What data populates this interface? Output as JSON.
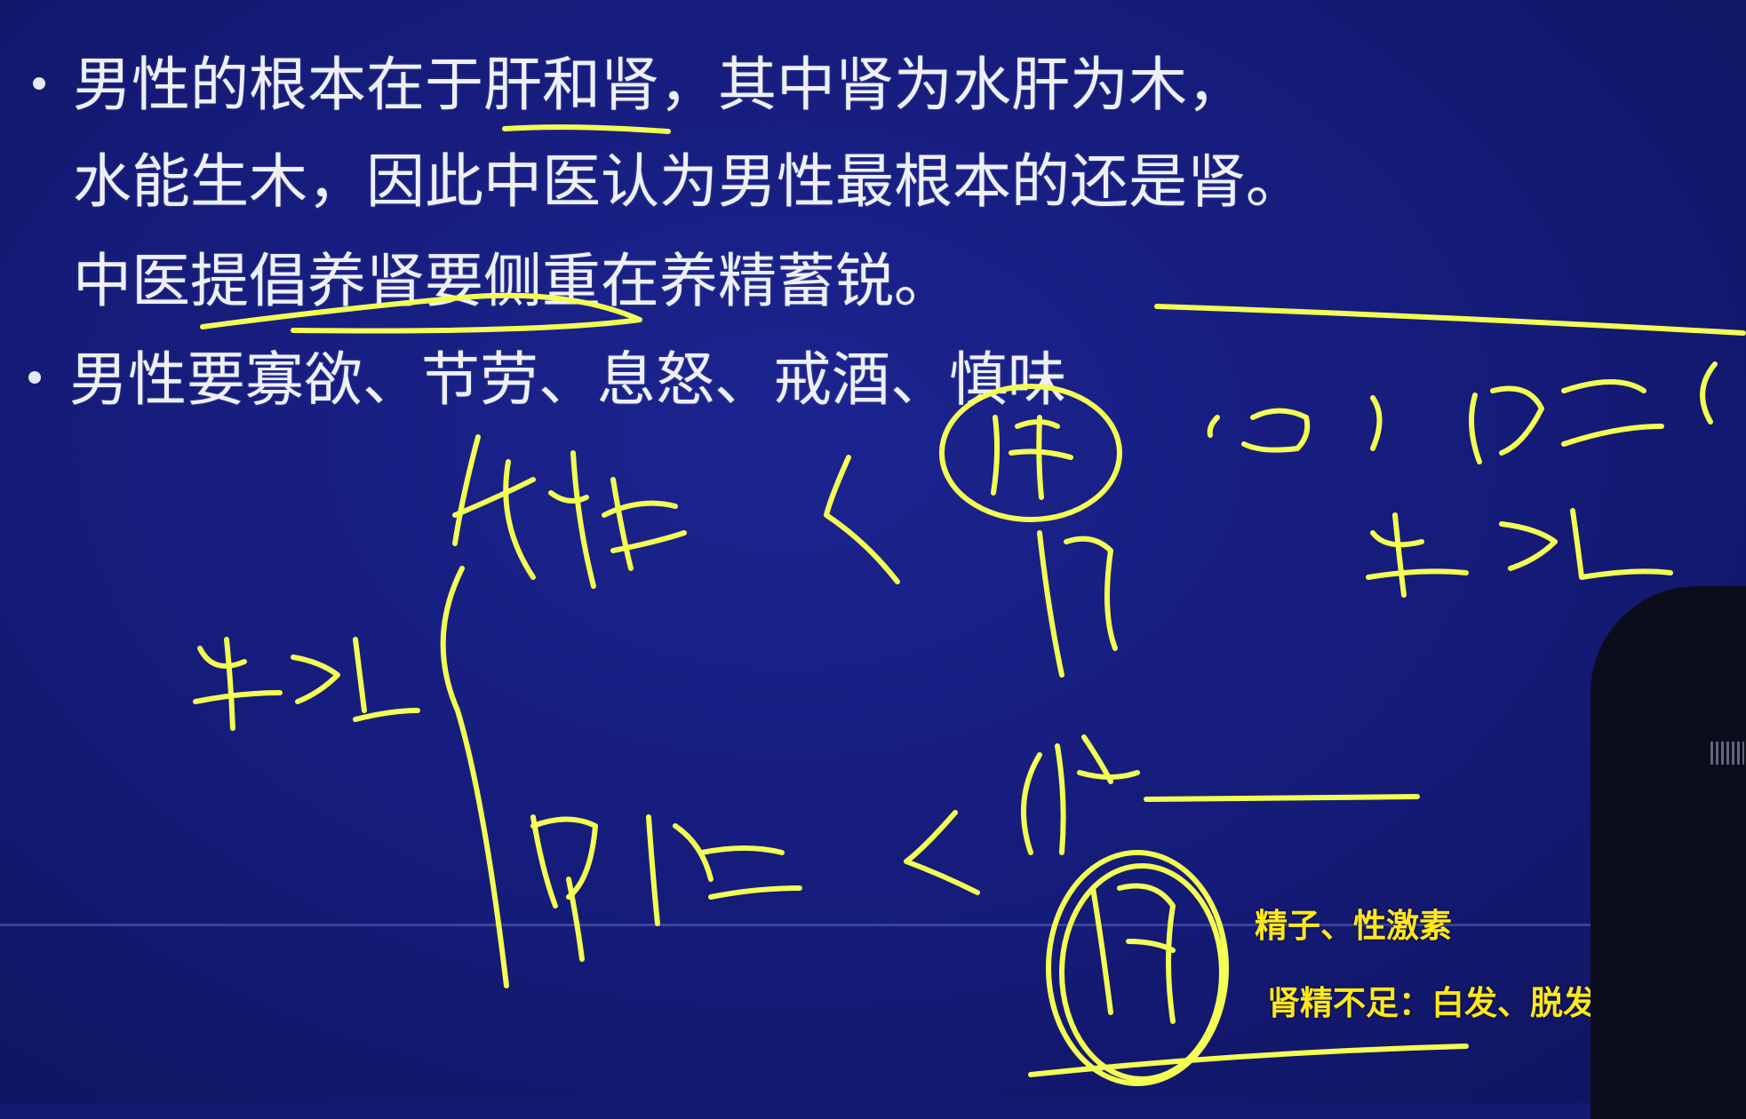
{
  "slide": {
    "bullet_points": [
      {
        "lines": [
          "男性的根本在于肝和肾，其中肾为水肝为木，",
          "水能生木，因此中医认为男性最根本的还是肾。",
          "中医提倡养肾要侧重在养精蓄锐。"
        ]
      },
      {
        "lines": [
          "男性要寡欲、节劳、息怒、戒酒、慎味"
        ]
      }
    ]
  },
  "captions": {
    "line1": "精子、性激素",
    "line2": "肾精不足：白发、脱发、齿松"
  },
  "colors": {
    "board": "#151b78",
    "slide_text": "#eef0f8",
    "chalk_ink": "#f3ff52",
    "caption": "#ffe81a"
  }
}
